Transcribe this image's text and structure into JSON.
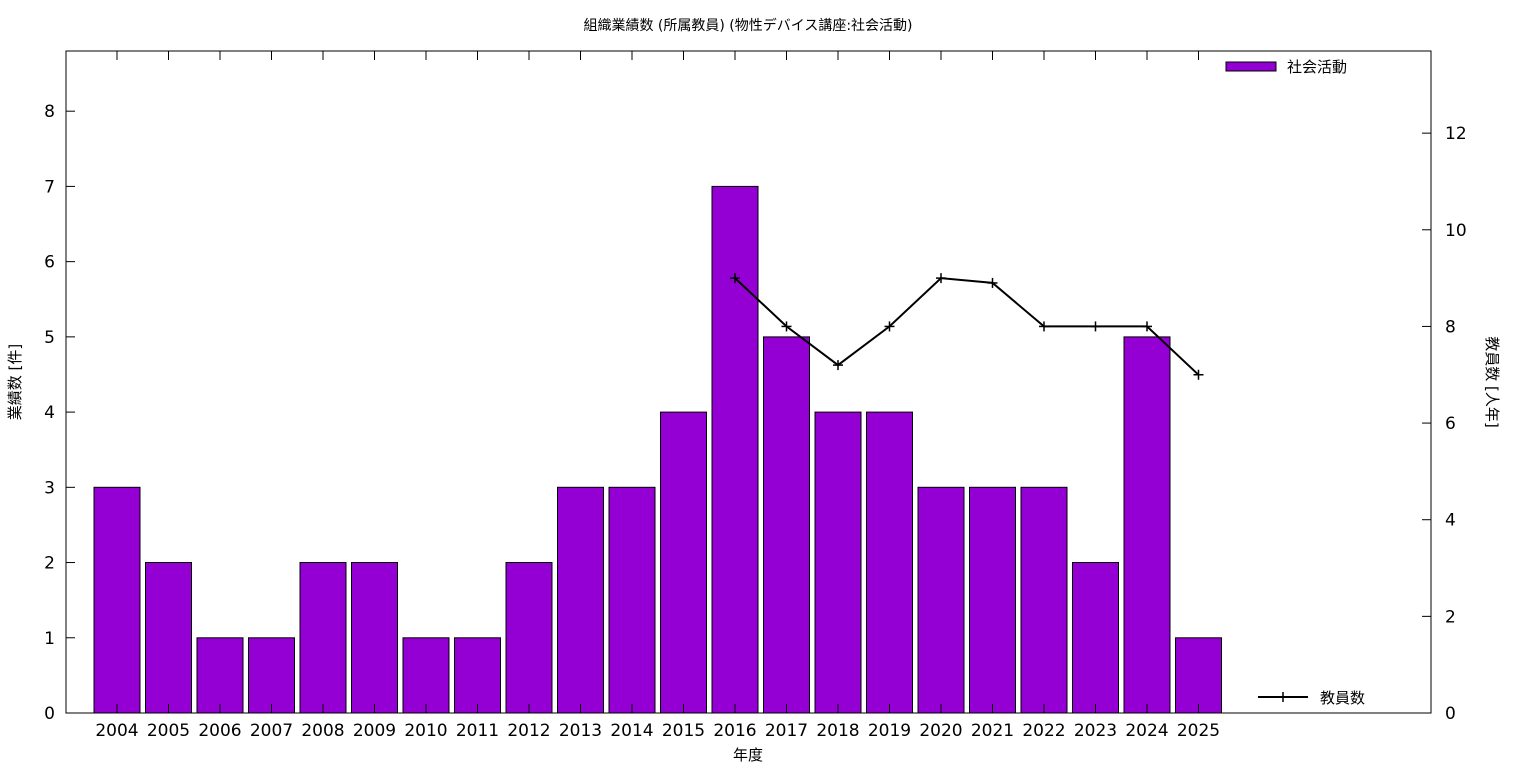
{
  "chart_data": {
    "type": "bar",
    "title": "組織業績数 (所属教員) (物性デバイス講座:社会活動)",
    "xlabel": "年度",
    "ylabel": "業績数 [件]",
    "y2label": "教員数 [人年]",
    "categories": [
      "2004",
      "2005",
      "2006",
      "2007",
      "2008",
      "2009",
      "2010",
      "2011",
      "2012",
      "2013",
      "2014",
      "2015",
      "2016",
      "2017",
      "2018",
      "2019",
      "2020",
      "2021",
      "2022",
      "2023",
      "2024",
      "2025"
    ],
    "series": [
      {
        "name": "社会活動",
        "type": "bar",
        "axis": "left",
        "color": "#9400d3",
        "values": [
          3,
          2,
          1,
          1,
          2,
          2,
          1,
          1,
          2,
          3,
          3,
          4,
          7,
          5,
          4,
          4,
          3,
          3,
          3,
          2,
          5,
          1
        ]
      },
      {
        "name": "教員数",
        "type": "line",
        "axis": "right",
        "color": "#000000",
        "values": [
          null,
          null,
          null,
          null,
          null,
          null,
          null,
          null,
          null,
          null,
          null,
          null,
          9,
          8,
          7.2,
          8,
          9,
          8.9,
          8,
          8,
          8,
          7
        ]
      }
    ],
    "ylim": [
      0,
      8.8
    ],
    "y2lim": [
      0,
      13.7
    ],
    "yticks": [
      0,
      1,
      2,
      3,
      4,
      5,
      6,
      7,
      8
    ],
    "y2ticks": [
      0,
      2,
      4,
      6,
      8,
      10,
      12
    ],
    "legend": {
      "bar_position": "top-right",
      "line_position": "bottom-right"
    },
    "grid": false
  }
}
